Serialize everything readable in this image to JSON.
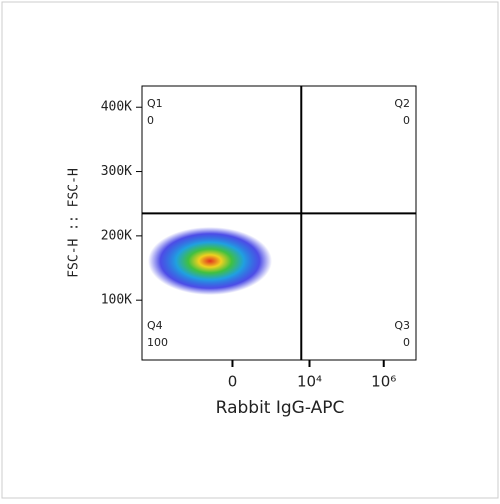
{
  "chart_data": {
    "type": "density",
    "x_label": "Rabbit IgG-APC",
    "y_label": "FSC-H :: FSC-H",
    "xscale": "biexponential",
    "xlim": [
      -23000,
      7400000
    ],
    "xticks": [
      0,
      {
        "value": 10000,
        "label": "10⁴"
      },
      {
        "value": 1000000,
        "label": "10⁶"
      }
    ],
    "ylim": [
      7000,
      433000
    ],
    "yticks": [
      {
        "value": 100000,
        "label": "100K"
      },
      {
        "value": 200000,
        "label": "200K"
      },
      {
        "value": 300000,
        "label": "300K"
      },
      {
        "value": 400000,
        "label": "400K"
      }
    ],
    "gates": {
      "x": 6000,
      "y": 235000
    },
    "quadrants": [
      {
        "name": "Q1",
        "value": 0
      },
      {
        "name": "Q2",
        "value": 0
      },
      {
        "name": "Q3",
        "value": 0
      },
      {
        "name": "Q4",
        "value": 100
      }
    ]
  }
}
